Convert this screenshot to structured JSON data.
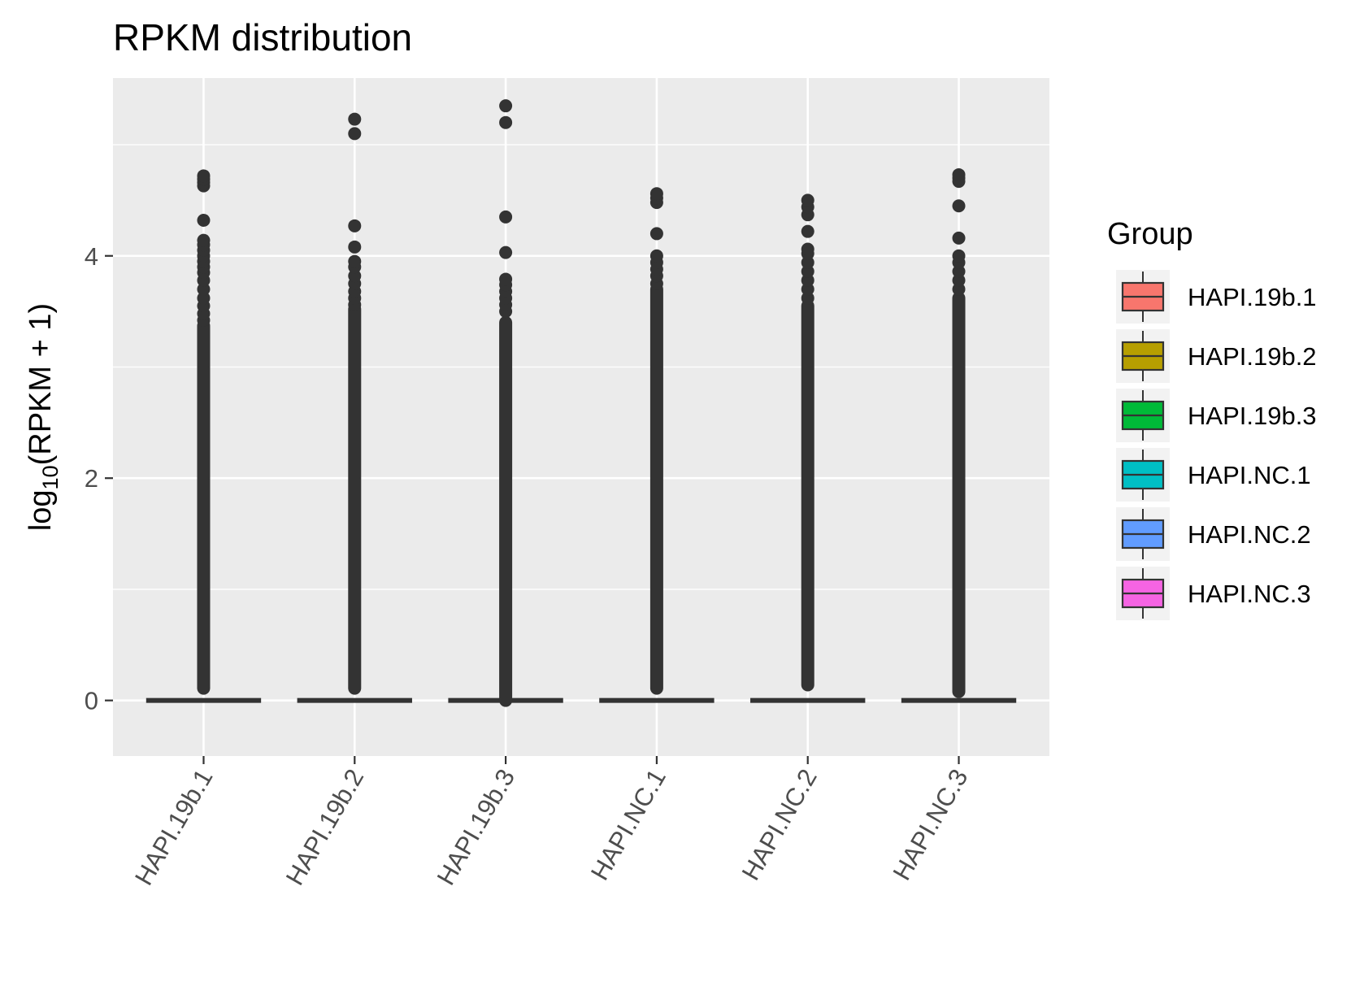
{
  "chart_data": {
    "type": "box",
    "title": "RPKM distribution",
    "xlabel": "",
    "ylabel": {
      "prefix": "log",
      "subscript": "10",
      "suffix": "(RPKM + 1)"
    },
    "ylim": [
      -0.5,
      5.6
    ],
    "yticks": [
      0,
      2,
      4
    ],
    "grid": true,
    "legend": {
      "title": "Group",
      "position": "right"
    },
    "categories": [
      "HAPI.19b.1",
      "HAPI.19b.2",
      "HAPI.19b.3",
      "HAPI.NC.1",
      "HAPI.NC.2",
      "HAPI.NC.3"
    ],
    "series": [
      {
        "name": "HAPI.19b.1",
        "color": "#F8766D",
        "box": {
          "min": 0,
          "q1": 0,
          "median": 0,
          "q3": 0,
          "max": 0
        },
        "outlier_band": [
          0.11,
          3.37
        ],
        "outliers": [
          3.42,
          3.48,
          3.55,
          3.62,
          3.7,
          3.78,
          3.85,
          3.9,
          3.95,
          4.0,
          4.05,
          4.1,
          4.14,
          4.32,
          4.63,
          4.66,
          4.69,
          4.72
        ]
      },
      {
        "name": "HAPI.19b.2",
        "color": "#B79F00",
        "box": {
          "min": 0,
          "q1": 0,
          "median": 0,
          "q3": 0,
          "max": 0
        },
        "outlier_band": [
          0.11,
          3.52
        ],
        "outliers": [
          3.56,
          3.62,
          3.68,
          3.75,
          3.82,
          3.9,
          3.95,
          4.08,
          4.27,
          5.1,
          5.23
        ]
      },
      {
        "name": "HAPI.19b.3",
        "color": "#00BA38",
        "box": {
          "min": 0,
          "q1": 0,
          "median": 0,
          "q3": 0,
          "max": 0
        },
        "outlier_band": [
          0.0,
          3.4
        ],
        "outliers": [
          3.5,
          3.56,
          3.62,
          3.68,
          3.74,
          3.79,
          4.03,
          4.35,
          5.2,
          5.35
        ]
      },
      {
        "name": "HAPI.NC.1",
        "color": "#00BFC4",
        "box": {
          "min": 0,
          "q1": 0,
          "median": 0,
          "q3": 0,
          "max": 0
        },
        "outlier_band": [
          0.11,
          3.7
        ],
        "outliers": [
          3.75,
          3.82,
          3.88,
          3.94,
          4.0,
          4.2,
          4.48,
          4.52,
          4.56
        ]
      },
      {
        "name": "HAPI.NC.2",
        "color": "#619CFF",
        "box": {
          "min": 0,
          "q1": 0,
          "median": 0,
          "q3": 0,
          "max": 0
        },
        "outlier_band": [
          0.14,
          3.55
        ],
        "outliers": [
          3.62,
          3.7,
          3.78,
          3.86,
          3.94,
          4.02,
          4.06,
          4.22,
          4.37,
          4.44,
          4.5
        ]
      },
      {
        "name": "HAPI.NC.3",
        "color": "#F564E3",
        "box": {
          "min": 0,
          "q1": 0,
          "median": 0,
          "q3": 0,
          "max": 0
        },
        "outlier_band": [
          0.08,
          3.62
        ],
        "outliers": [
          3.7,
          3.78,
          3.86,
          3.94,
          4.0,
          4.16,
          4.45,
          4.67,
          4.7,
          4.73
        ]
      }
    ]
  }
}
